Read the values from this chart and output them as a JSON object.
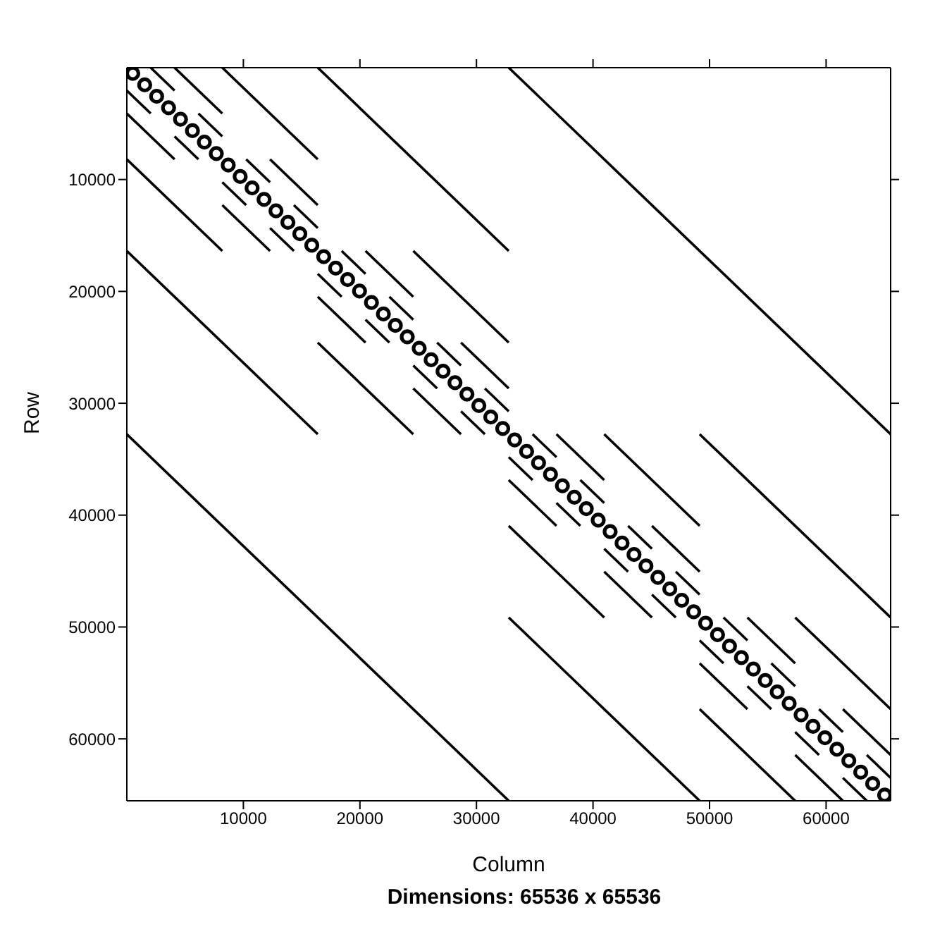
{
  "chart_data": {
    "type": "line",
    "xlabel": "Column",
    "ylabel": "Row",
    "annotations": [
      "Dimensions: 65536 x 65536"
    ],
    "xlim": [
      0,
      65536
    ],
    "ylim": [
      65536,
      0
    ],
    "xticks": [
      10000,
      20000,
      30000,
      40000,
      50000,
      60000
    ],
    "yticks": [
      10000,
      20000,
      30000,
      40000,
      50000,
      60000
    ],
    "grid": false,
    "line_style": "solid",
    "series": [
      {
        "type": "line",
        "color": "#000000",
        "marker": "none",
        "x": [
          32768,
          65536,
          null,
          0,
          32768
        ],
        "values": [
          0,
          32768,
          null,
          32768,
          65536
        ]
      },
      {
        "type": "line",
        "color": "#000000",
        "marker": "none",
        "x": [
          16384,
          32768,
          null,
          0,
          16384,
          null,
          49152,
          65536,
          null,
          32768,
          49152
        ],
        "values": [
          0,
          16384,
          null,
          16384,
          32768,
          null,
          32768,
          49152,
          null,
          49152,
          65536
        ]
      },
      {
        "type": "line",
        "color": "#000000",
        "marker": "none",
        "x": [
          8192,
          16384,
          null,
          0,
          8192,
          null,
          24576,
          32768,
          null,
          16384,
          24576,
          null,
          40960,
          49152,
          null,
          32768,
          40960,
          null,
          57344,
          65536,
          null,
          49152,
          57344
        ],
        "values": [
          0,
          8192,
          null,
          8192,
          16384,
          null,
          16384,
          24576,
          null,
          24576,
          32768,
          null,
          32768,
          40960,
          null,
          40960,
          49152,
          null,
          49152,
          57344,
          null,
          57344,
          65536
        ]
      },
      {
        "type": "line",
        "color": "#000000",
        "marker": "none",
        "x": [
          4096,
          8192,
          null,
          0,
          4096,
          null,
          12288,
          16384,
          null,
          8192,
          12288,
          null,
          20480,
          24576,
          null,
          16384,
          20480,
          null,
          28672,
          32768,
          null,
          24576,
          28672,
          null,
          36864,
          40960,
          null,
          32768,
          36864,
          null,
          45056,
          49152,
          null,
          40960,
          45056,
          null,
          53248,
          57344,
          null,
          49152,
          53248,
          null,
          61440,
          65536,
          null,
          57344,
          61440
        ],
        "values": [
          0,
          4096,
          null,
          4096,
          8192,
          null,
          8192,
          12288,
          null,
          12288,
          16384,
          null,
          16384,
          20480,
          null,
          20480,
          24576,
          null,
          24576,
          28672,
          null,
          28672,
          32768,
          null,
          32768,
          36864,
          null,
          36864,
          40960,
          null,
          40960,
          45056,
          null,
          45056,
          49152,
          null,
          49152,
          53248,
          null,
          53248,
          57344,
          null,
          57344,
          61440,
          null,
          61440,
          65536
        ]
      },
      {
        "type": "line",
        "color": "#000000",
        "marker": "none",
        "x": [
          2048,
          4096,
          null,
          0,
          2048,
          null,
          6144,
          8192,
          null,
          4096,
          6144,
          null,
          10240,
          12288,
          null,
          8192,
          10240,
          null,
          14336,
          16384,
          null,
          12288,
          14336,
          null,
          18432,
          20480,
          null,
          16384,
          18432,
          null,
          22528,
          24576,
          null,
          20480,
          22528,
          null,
          26624,
          28672,
          null,
          24576,
          26624,
          null,
          30720,
          32768,
          null,
          28672,
          30720,
          null,
          34816,
          36864,
          null,
          32768,
          34816,
          null,
          38912,
          40960,
          null,
          36864,
          38912,
          null,
          43008,
          45056,
          null,
          40960,
          43008,
          null,
          47104,
          49152,
          null,
          45056,
          47104,
          null,
          51200,
          53248,
          null,
          49152,
          51200,
          null,
          55296,
          57344,
          null,
          53248,
          55296,
          null,
          59392,
          61440,
          null,
          57344,
          59392,
          null,
          63488,
          65536,
          null,
          61440,
          63488
        ],
        "values": [
          0,
          2048,
          null,
          2048,
          4096,
          null,
          4096,
          6144,
          null,
          6144,
          8192,
          null,
          8192,
          10240,
          null,
          10240,
          12288,
          null,
          12288,
          14336,
          null,
          14336,
          16384,
          null,
          16384,
          18432,
          null,
          18432,
          20480,
          null,
          20480,
          22528,
          null,
          22528,
          24576,
          null,
          24576,
          26624,
          null,
          26624,
          28672,
          null,
          28672,
          30720,
          null,
          30720,
          32768,
          null,
          32768,
          34816,
          null,
          34816,
          36864,
          null,
          36864,
          38912,
          null,
          38912,
          40960,
          null,
          40960,
          43008,
          null,
          43008,
          45056,
          null,
          45056,
          47104,
          null,
          47104,
          49152,
          null,
          49152,
          51200,
          null,
          51200,
          53248,
          null,
          53248,
          55296,
          null,
          55296,
          57344,
          null,
          57344,
          59392,
          null,
          59392,
          61440,
          null,
          61440,
          63488,
          null,
          63488,
          65536
        ]
      },
      {
        "type": "scatter",
        "color": "#000000",
        "marker": "circle",
        "x": [
          512,
          1536,
          2560,
          3584,
          4608,
          5632,
          6656,
          7680,
          8704,
          9728,
          10752,
          11776,
          12800,
          13824,
          14848,
          15872,
          16896,
          17920,
          18944,
          19968,
          20992,
          22016,
          23040,
          24064,
          25088,
          26112,
          27136,
          28160,
          29184,
          30208,
          31232,
          32256,
          33280,
          34304,
          35328,
          36352,
          37376,
          38400,
          39424,
          40448,
          41472,
          42496,
          43520,
          44544,
          45568,
          46592,
          47616,
          48640,
          49664,
          50688,
          51712,
          52736,
          53760,
          54784,
          55808,
          56832,
          57856,
          58880,
          59904,
          60928,
          61952,
          62976,
          64000,
          65024
        ],
        "values": [
          512,
          1536,
          2560,
          3584,
          4608,
          5632,
          6656,
          7680,
          8704,
          9728,
          10752,
          11776,
          12800,
          13824,
          14848,
          15872,
          16896,
          17920,
          18944,
          19968,
          20992,
          22016,
          23040,
          24064,
          25088,
          26112,
          27136,
          28160,
          29184,
          30208,
          31232,
          32256,
          33280,
          34304,
          35328,
          36352,
          37376,
          38400,
          39424,
          40448,
          41472,
          42496,
          43520,
          44544,
          45568,
          46592,
          47616,
          48640,
          49664,
          50688,
          51712,
          52736,
          53760,
          54784,
          55808,
          56832,
          57856,
          58880,
          59904,
          60928,
          61952,
          62976,
          64000,
          65024
        ]
      }
    ]
  }
}
